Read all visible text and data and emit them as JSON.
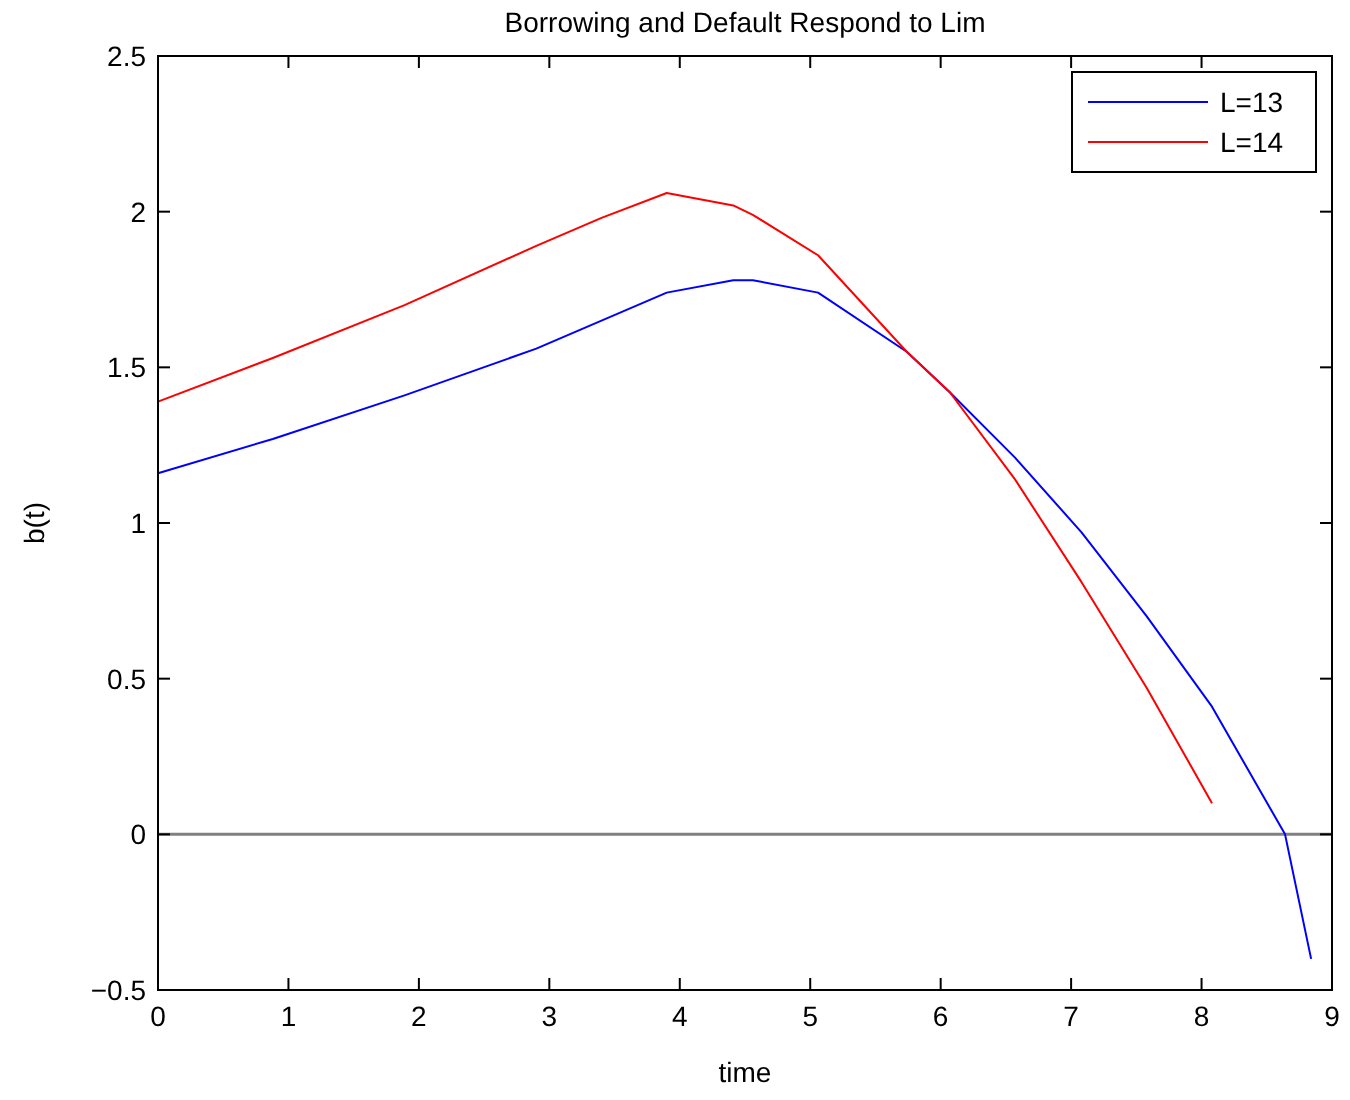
{
  "chart_data": {
    "type": "line",
    "title": "Borrowing and Default Respond to Lim",
    "xlabel": "time",
    "ylabel": "b(t)",
    "xlim": [
      0,
      9
    ],
    "xticks": [
      0,
      1,
      2,
      3,
      4,
      5,
      6,
      7,
      8,
      9
    ],
    "ylim": [
      -0.5,
      2.5
    ],
    "yticks": [
      -0.5,
      0,
      0.5,
      1,
      1.5,
      2,
      2.5
    ],
    "grid": false,
    "legend": "top right",
    "line_style": "solid",
    "marker": "none",
    "ref_lines": [
      {
        "axis": "y",
        "value": 0,
        "color": "#808080"
      }
    ],
    "series": [
      {
        "name": "L=13",
        "color": "#0000ff",
        "x": [
          0,
          0.88,
          1.89,
          2.9,
          3.9,
          4.41,
          4.56,
          5.06,
          5.74,
          6.07,
          6.57,
          7.08,
          7.58,
          8.08,
          8.64,
          8.84
        ],
        "values": [
          1.16,
          1.27,
          1.41,
          1.56,
          1.74,
          1.78,
          1.78,
          1.74,
          1.55,
          1.42,
          1.21,
          0.97,
          0.7,
          0.41,
          0,
          -0.4
        ]
      },
      {
        "name": "L=14",
        "color": "#ff0000",
        "x": [
          0,
          0.88,
          1.89,
          2.9,
          3.4,
          3.9,
          4.41,
          4.56,
          5.06,
          5.74,
          6.07,
          6.57,
          7.08,
          7.58,
          8.08
        ],
        "values": [
          1.39,
          1.53,
          1.7,
          1.89,
          1.98,
          2.06,
          2.02,
          1.99,
          1.86,
          1.55,
          1.42,
          1.14,
          0.81,
          0.47,
          0.1
        ]
      }
    ]
  }
}
